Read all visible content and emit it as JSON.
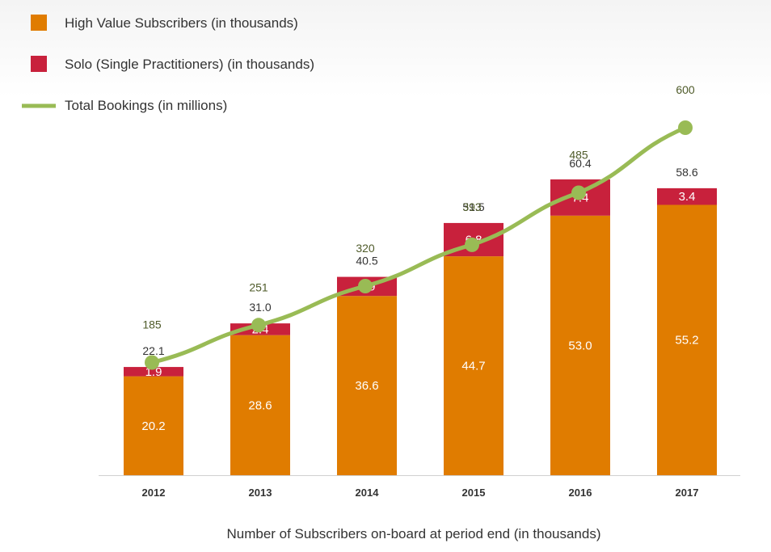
{
  "chart_data": {
    "type": "bar",
    "stacked": true,
    "categories": [
      "2012",
      "2013",
      "2014",
      "2015",
      "2016",
      "2017"
    ],
    "series": [
      {
        "name": "High Value Subscribers (in thousands)",
        "type": "bar",
        "color": "#e07c00",
        "values": [
          20.2,
          28.6,
          36.6,
          44.7,
          53.0,
          55.2
        ]
      },
      {
        "name": "Solo (Single Practitioners) (in thousands)",
        "type": "bar",
        "color": "#c8213c",
        "values": [
          1.9,
          2.4,
          3.9,
          6.8,
          7.4,
          3.4
        ]
      },
      {
        "name": "Total Bookings (in millions)",
        "type": "line",
        "color": "#99bb55",
        "values": [
          185,
          251,
          320,
          393,
          485,
          600
        ]
      }
    ],
    "bar_totals": [
      "22.1",
      "31.0",
      "40.5",
      "51.5",
      "60.4",
      "58.6"
    ],
    "high_value_labels": [
      "20.2",
      "28.6",
      "36.6",
      "44.7",
      "53.0",
      "55.2"
    ],
    "solo_labels": [
      "1.9",
      "2.4",
      "3.9",
      "6.8",
      "7.4",
      "3.4"
    ],
    "bookings_labels": [
      "185",
      "251",
      "320",
      "393",
      "485",
      "600"
    ],
    "xlabel": "Number of Subscribers on-board at period end (in thousands)",
    "legend": {
      "position": "top-left",
      "items": [
        {
          "label": "High Value Subscribers (in thousands)",
          "shape": "square",
          "color": "#e07c00"
        },
        {
          "label": "Solo (Single Practitioners) (in thousands)",
          "shape": "square",
          "color": "#c8213c"
        },
        {
          "label": "Total Bookings (in millions)",
          "shape": "line",
          "color": "#99bb55"
        }
      ]
    },
    "grid": false
  }
}
